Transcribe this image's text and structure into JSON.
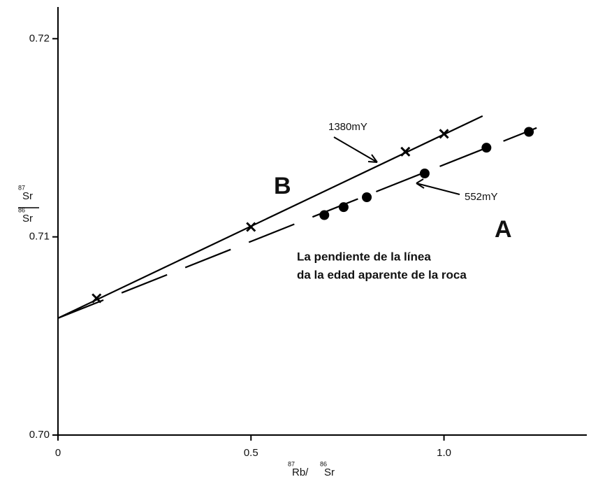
{
  "chart_data": {
    "type": "scatter",
    "x_label_parts": [
      {
        "sup": "87",
        "text": "Rb/"
      },
      {
        "sup": "86",
        "text": "Sr"
      }
    ],
    "y_label_parts": [
      {
        "sup": "87",
        "text": "Sr"
      },
      {
        "sup": "86",
        "text": "Sr"
      }
    ],
    "xlim": [
      0,
      1.37
    ],
    "ylim": [
      0.7,
      0.7216
    ],
    "xticks": [
      0,
      0.5,
      {
        "value": 1,
        "label": "1.0"
      }
    ],
    "yticks": [
      {
        "value": 0.7,
        "label": "0.70"
      },
      0.71,
      0.72
    ],
    "series": [
      {
        "name": "B",
        "marker": "x",
        "color": "#000000",
        "x": [
          0.1,
          0.5,
          0.9,
          1.0
        ],
        "values": [
          0.7069,
          0.7105,
          0.7143,
          0.7152
        ],
        "line": {
          "x": [
            0,
            1.1
          ],
          "values": [
            0.7059,
            0.7161
          ],
          "dashed": false
        }
      },
      {
        "name": "A",
        "marker": "dot",
        "color": "#000000",
        "x": [
          0.69,
          0.74,
          0.8,
          0.95,
          1.11,
          1.22
        ],
        "values": [
          0.7111,
          0.7115,
          0.712,
          0.7132,
          0.7145,
          0.7153
        ],
        "line": {
          "x": [
            0,
            1.24
          ],
          "values": [
            0.7059,
            0.7155
          ],
          "dashed": true
        }
      }
    ],
    "annotations": [
      "1380mY",
      "552mY"
    ],
    "note_lines": [
      "La pendiente de la línea",
      "da la edad aparente de la roca"
    ]
  }
}
